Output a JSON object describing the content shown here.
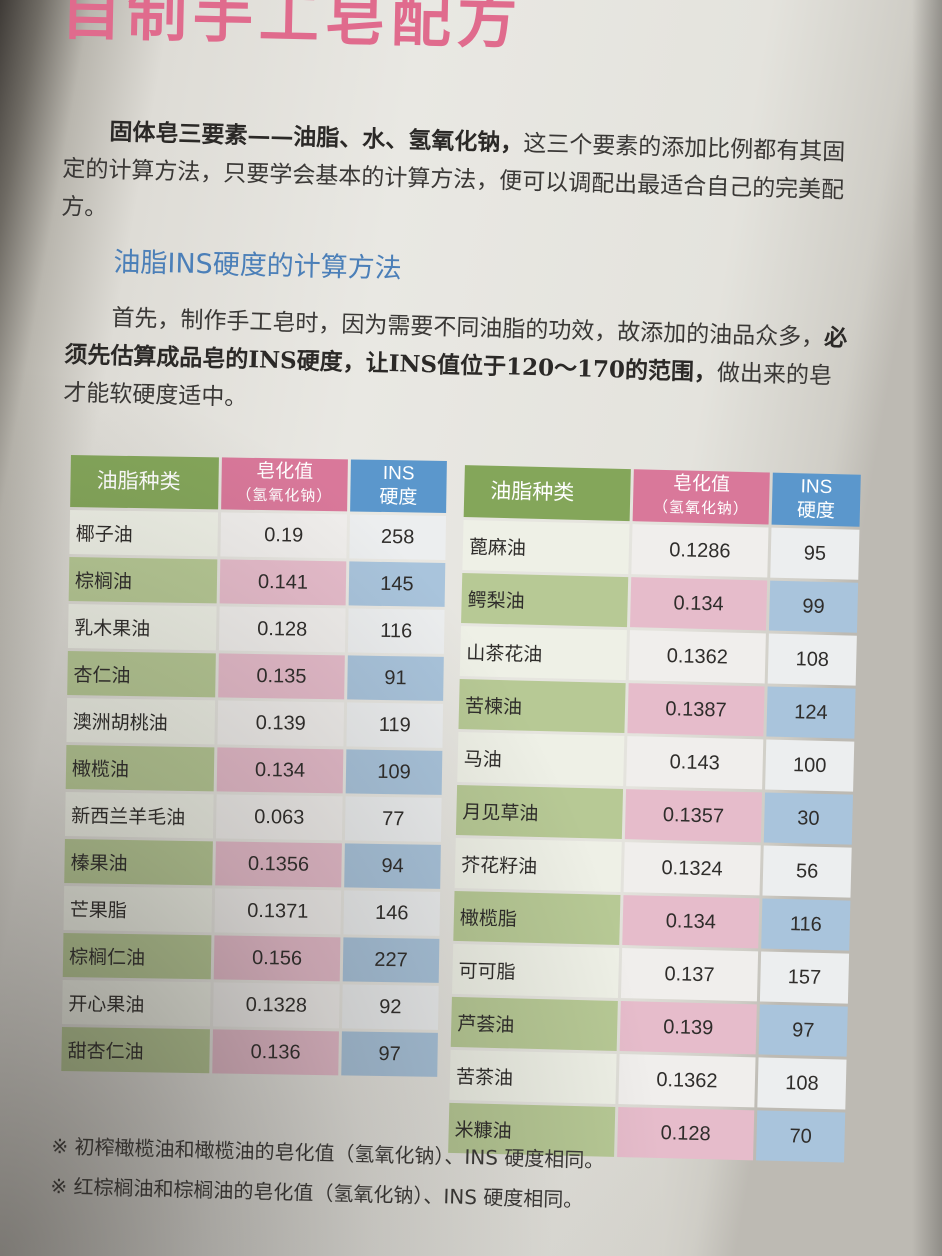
{
  "page": {
    "title": "自制手工皂配方",
    "intro": {
      "lead": "固体皂三要素——油脂、水、氢氧化钠，",
      "rest": "这三个要素的添加比例都有其固定的计算方法，只要学会基本的计算方法，便可以调配出最适合自己的完美配方。"
    },
    "subheading": "油脂INS硬度的计算方法",
    "body": {
      "part1": "首先，制作手工皂时，因为需要不同油脂的功效，故添加的油品众多，",
      "bold": "必须先估算成品皂的INS硬度，让INS值位于120～170的范围，",
      "part2": "做出来的皂才能软硬度适中。"
    }
  },
  "table_headers": {
    "name": "油脂种类",
    "sap_line1": "皂化值",
    "sap_line2": "（氢氧化钠）",
    "ins_line1": "INS",
    "ins_line2": "硬度"
  },
  "left_table": [
    {
      "name": "椰子油",
      "sap": "0.19",
      "ins": "258"
    },
    {
      "name": "棕榈油",
      "sap": "0.141",
      "ins": "145"
    },
    {
      "name": "乳木果油",
      "sap": "0.128",
      "ins": "116"
    },
    {
      "name": "杏仁油",
      "sap": "0.135",
      "ins": "91"
    },
    {
      "name": "澳洲胡桃油",
      "sap": "0.139",
      "ins": "119"
    },
    {
      "name": "橄榄油",
      "sap": "0.134",
      "ins": "109"
    },
    {
      "name": "新西兰羊毛油",
      "sap": "0.063",
      "ins": "77"
    },
    {
      "name": "榛果油",
      "sap": "0.1356",
      "ins": "94"
    },
    {
      "name": "芒果脂",
      "sap": "0.1371",
      "ins": "146"
    },
    {
      "name": "棕榈仁油",
      "sap": "0.156",
      "ins": "227"
    },
    {
      "name": "开心果油",
      "sap": "0.1328",
      "ins": "92"
    },
    {
      "name": "甜杏仁油",
      "sap": "0.136",
      "ins": "97"
    }
  ],
  "right_table": [
    {
      "name": "蓖麻油",
      "sap": "0.1286",
      "ins": "95"
    },
    {
      "name": "鳄梨油",
      "sap": "0.134",
      "ins": "99"
    },
    {
      "name": "山茶花油",
      "sap": "0.1362",
      "ins": "108"
    },
    {
      "name": "苦楝油",
      "sap": "0.1387",
      "ins": "124"
    },
    {
      "name": "马油",
      "sap": "0.143",
      "ins": "100"
    },
    {
      "name": "月见草油",
      "sap": "0.1357",
      "ins": "30"
    },
    {
      "name": "芥花籽油",
      "sap": "0.1324",
      "ins": "56"
    },
    {
      "name": "橄榄脂",
      "sap": "0.134",
      "ins": "116"
    },
    {
      "name": "可可脂",
      "sap": "0.137",
      "ins": "157"
    },
    {
      "name": "芦荟油",
      "sap": "0.139",
      "ins": "97"
    },
    {
      "name": "苦茶油",
      "sap": "0.1362",
      "ins": "108"
    },
    {
      "name": "米糠油",
      "sap": "0.128",
      "ins": "70"
    }
  ],
  "notes": [
    "※ 初榨橄榄油和橄榄油的皂化值（氢氧化钠）、INS 硬度相同。",
    "※ 红棕榈油和棕榈油的皂化值（氢氧化钠）、INS 硬度相同。"
  ],
  "colors": {
    "title_pink": "#e06b8d",
    "heading_blue": "#4b7fb8",
    "header_green": "#84a65a",
    "header_pink": "#d9789a",
    "header_blue": "#5b97cc"
  }
}
